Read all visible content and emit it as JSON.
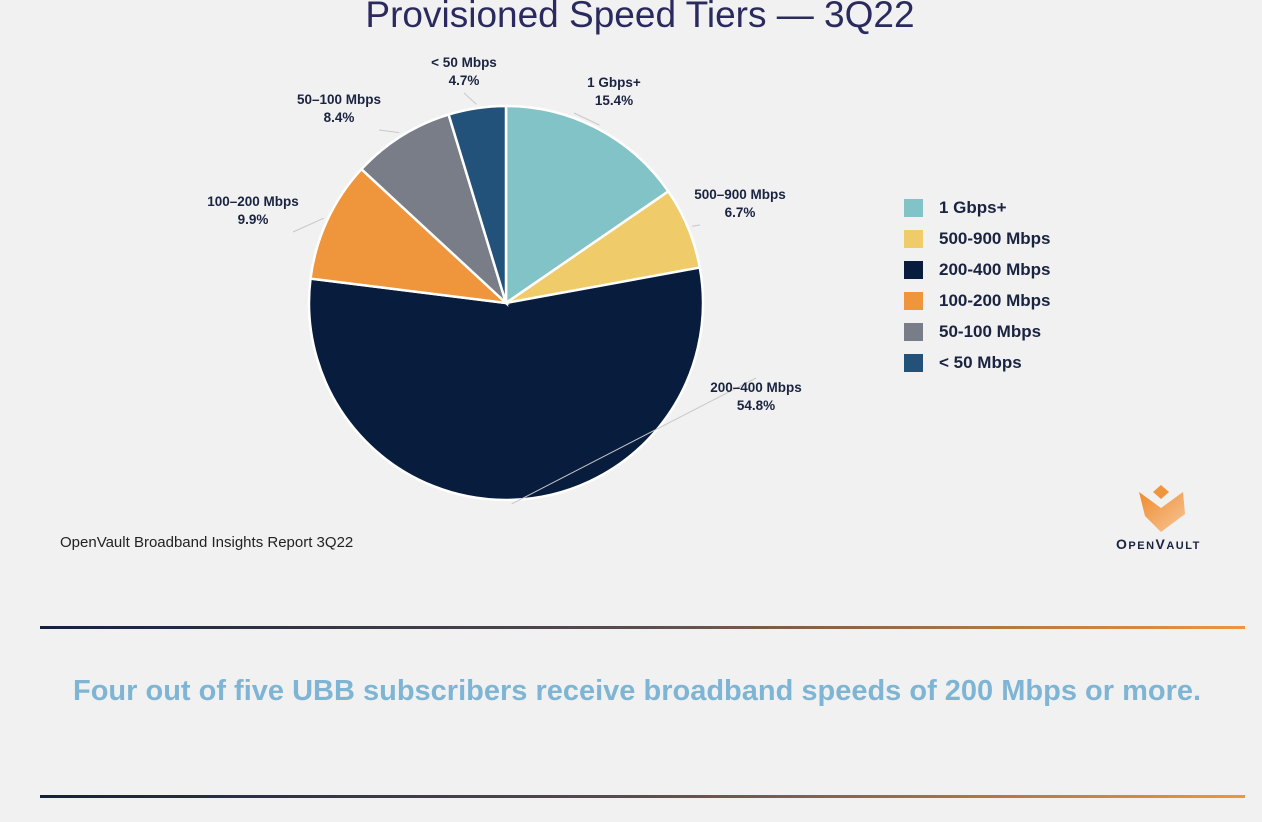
{
  "chart_data": {
    "type": "pie",
    "title": "Provisioned Speed Tiers — 3Q22",
    "slices": [
      {
        "label": "1 Gbps+",
        "value": 15.4,
        "display": "15.4%",
        "legend": "1 Gbps+",
        "color": "#82c3c7"
      },
      {
        "label": "500–900 Mbps",
        "value": 6.7,
        "display": "6.7%",
        "legend": "500-900 Mbps",
        "color": "#efcb6a"
      },
      {
        "label": "200–400 Mbps",
        "value": 54.8,
        "display": "54.8%",
        "legend": "200-400 Mbps",
        "color": "#081c3e"
      },
      {
        "label": "100–200 Mbps",
        "value": 9.9,
        "display": "9.9%",
        "legend": "100-200 Mbps",
        "color": "#ef963c"
      },
      {
        "label": "50–100 Mbps",
        "value": 8.4,
        "display": "8.4%",
        "legend": "50-100 Mbps",
        "color": "#787d87"
      },
      {
        "label": "< 50 Mbps",
        "value": 4.7,
        "display": "4.7%",
        "legend": "< 50 Mbps",
        "color": "#22527a"
      }
    ],
    "start_angle": "12 o'clock",
    "direction": "clockwise",
    "legend_position": "right"
  },
  "source": "OpenVault Broadband Insights Report 3Q22",
  "logo_text": "OpenVault",
  "headline": "Four out of five UBB subscribers receive broadband speeds of 200 Mbps or more."
}
